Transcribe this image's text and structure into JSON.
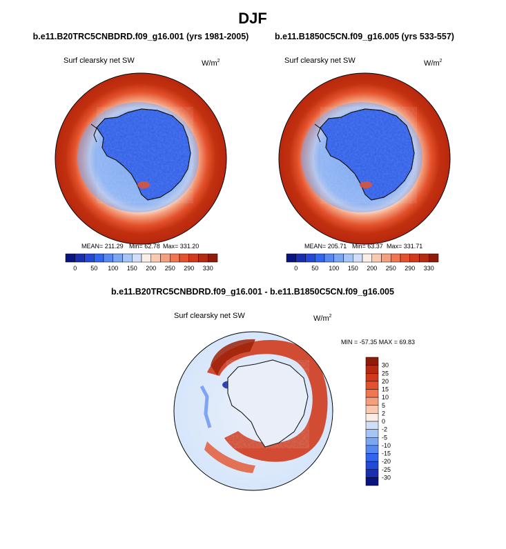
{
  "title": "DJF",
  "chart_data": [
    {
      "type": "heatmap",
      "projection": "south polar stereographic",
      "title": "b.e11.B20TRC5CNBDRD.f09_g16.001 (yrs 1981-2005)",
      "variable": "Surf clearsky net SW",
      "units_base": "W/m",
      "units_exp": "2",
      "stats": {
        "mean_label": "MEAN= 211.29",
        "min_label": "Min=  62.78",
        "max_label": "Max= 331.20"
      },
      "mean": 211.29,
      "min": 62.78,
      "max": 331.2,
      "colorbar": {
        "orientation": "horizontal",
        "tick_labels": [
          "0",
          "50",
          "100",
          "150",
          "200",
          "250",
          "290",
          "330"
        ],
        "colors": [
          "#0a1480",
          "#1a2fb0",
          "#2448d8",
          "#3366ee",
          "#5588f0",
          "#7aa6f2",
          "#a6c4f5",
          "#d0def8",
          "#fbeee6",
          "#f9c9b2",
          "#f4a07e",
          "#ef7650",
          "#e4522d",
          "#d1391a",
          "#b52a10",
          "#8e1c08"
        ]
      }
    },
    {
      "type": "heatmap",
      "projection": "south polar stereographic",
      "title": "b.e11.B1850C5CN.f09_g16.005 (yrs 533-557)",
      "variable": "Surf clearsky net SW",
      "units_base": "W/m",
      "units_exp": "2",
      "stats": {
        "mean_label": "MEAN= 205.71",
        "min_label": "Min=  63.37",
        "max_label": "Max= 331.71"
      },
      "mean": 205.71,
      "min": 63.37,
      "max": 331.71,
      "colorbar": {
        "orientation": "horizontal",
        "tick_labels": [
          "0",
          "50",
          "100",
          "150",
          "200",
          "250",
          "290",
          "330"
        ],
        "colors": [
          "#0a1480",
          "#1a2fb0",
          "#2448d8",
          "#3366ee",
          "#5588f0",
          "#7aa6f2",
          "#a6c4f5",
          "#d0def8",
          "#fbeee6",
          "#f9c9b2",
          "#f4a07e",
          "#ef7650",
          "#e4522d",
          "#d1391a",
          "#b52a10",
          "#8e1c08"
        ]
      }
    },
    {
      "type": "heatmap",
      "projection": "south polar stereographic",
      "title": "b.e11.B20TRC5CNBDRD.f09_g16.001 - b.e11.B1850C5CN.f09_g16.005",
      "variable": "Surf clearsky net SW",
      "units_base": "W/m",
      "units_exp": "2",
      "stats": {
        "minmax_label": "MIN = -57.35 MAX =  69.83"
      },
      "min": -57.35,
      "max": 69.83,
      "colorbar": {
        "orientation": "vertical",
        "tick_labels": [
          "30",
          "25",
          "20",
          "15",
          "10",
          "5",
          "2",
          "0",
          "-2",
          "-5",
          "-10",
          "-15",
          "-20",
          "-25",
          "-30"
        ],
        "colors": [
          "#8e1c08",
          "#b52a10",
          "#d1391a",
          "#e4522d",
          "#ef7650",
          "#f4a07e",
          "#f9c9b2",
          "#fbeee6",
          "#d0def8",
          "#a6c4f5",
          "#7aa6f2",
          "#5588f0",
          "#3366ee",
          "#2448d8",
          "#1a2fb0",
          "#0a1480"
        ]
      }
    }
  ],
  "colors": {
    "ocean_far": "#b8280e",
    "ocean_mid": "#ef7650",
    "ocean_near": "#fbe4d8",
    "sea_ice": "#7aa6f2",
    "ice_sheet": "#2e5ee8",
    "ice_sheet_dark": "#2650d6",
    "diff_background": "#d6e6fb",
    "diff_ring": "#cf3b1c",
    "diff_ring_dark": "#9c2108",
    "diff_continent": "#e9eff9",
    "coastline": "#000000"
  }
}
